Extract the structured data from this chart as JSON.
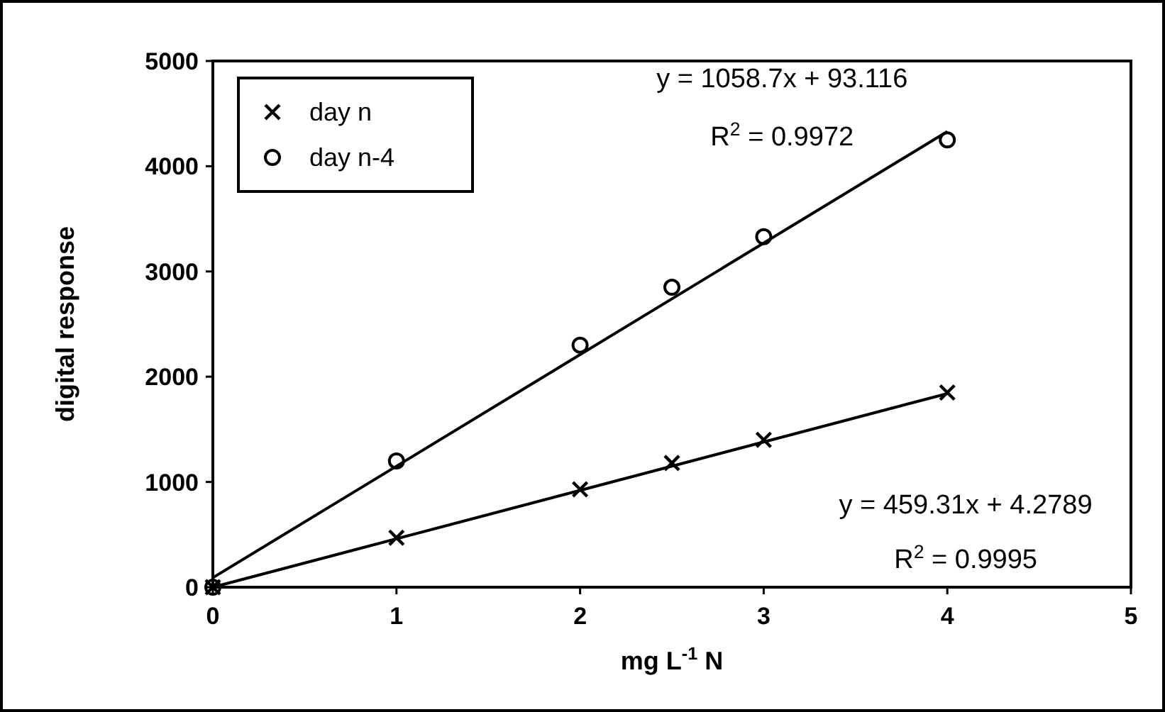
{
  "chart_data": {
    "type": "scatter",
    "xlabel": "mg L$^{-1}$ N",
    "ylabel": "digital response",
    "xlim": [
      0,
      5
    ],
    "ylim": [
      0,
      5000
    ],
    "xticks": [
      0,
      1,
      2,
      3,
      4,
      5
    ],
    "yticks": [
      0,
      1000,
      2000,
      3000,
      4000,
      5000
    ],
    "grid": false,
    "legend": "top left",
    "series": [
      {
        "name": "day n",
        "color": "#000000",
        "marker": "cross",
        "x": [
          0,
          1,
          2,
          2.5,
          3,
          4
        ],
        "values": [
          0,
          470,
          930,
          1180,
          1400,
          1850
        ]
      },
      {
        "name": "day n-4",
        "color": "#000000",
        "marker": "circle",
        "x": [
          0,
          1,
          2,
          2.5,
          3,
          4
        ],
        "values": [
          0,
          1200,
          2300,
          2850,
          3330,
          4250
        ]
      },
      {
        "type": "line",
        "color": "#000000",
        "marker": "none",
        "x": [
          0,
          4
        ],
        "values": [
          0,
          1840
        ]
      },
      {
        "type": "line",
        "color": "#000000",
        "marker": "none",
        "x": [
          0,
          4
        ],
        "values": [
          90,
          4330
        ]
      }
    ],
    "annotations": [
      "y = 1058.7x + 93.116",
      "R$^{2}$ = 0.9972",
      "y = 459.31x + 4.2789",
      "R$^{2}$ = 0.9995"
    ]
  }
}
